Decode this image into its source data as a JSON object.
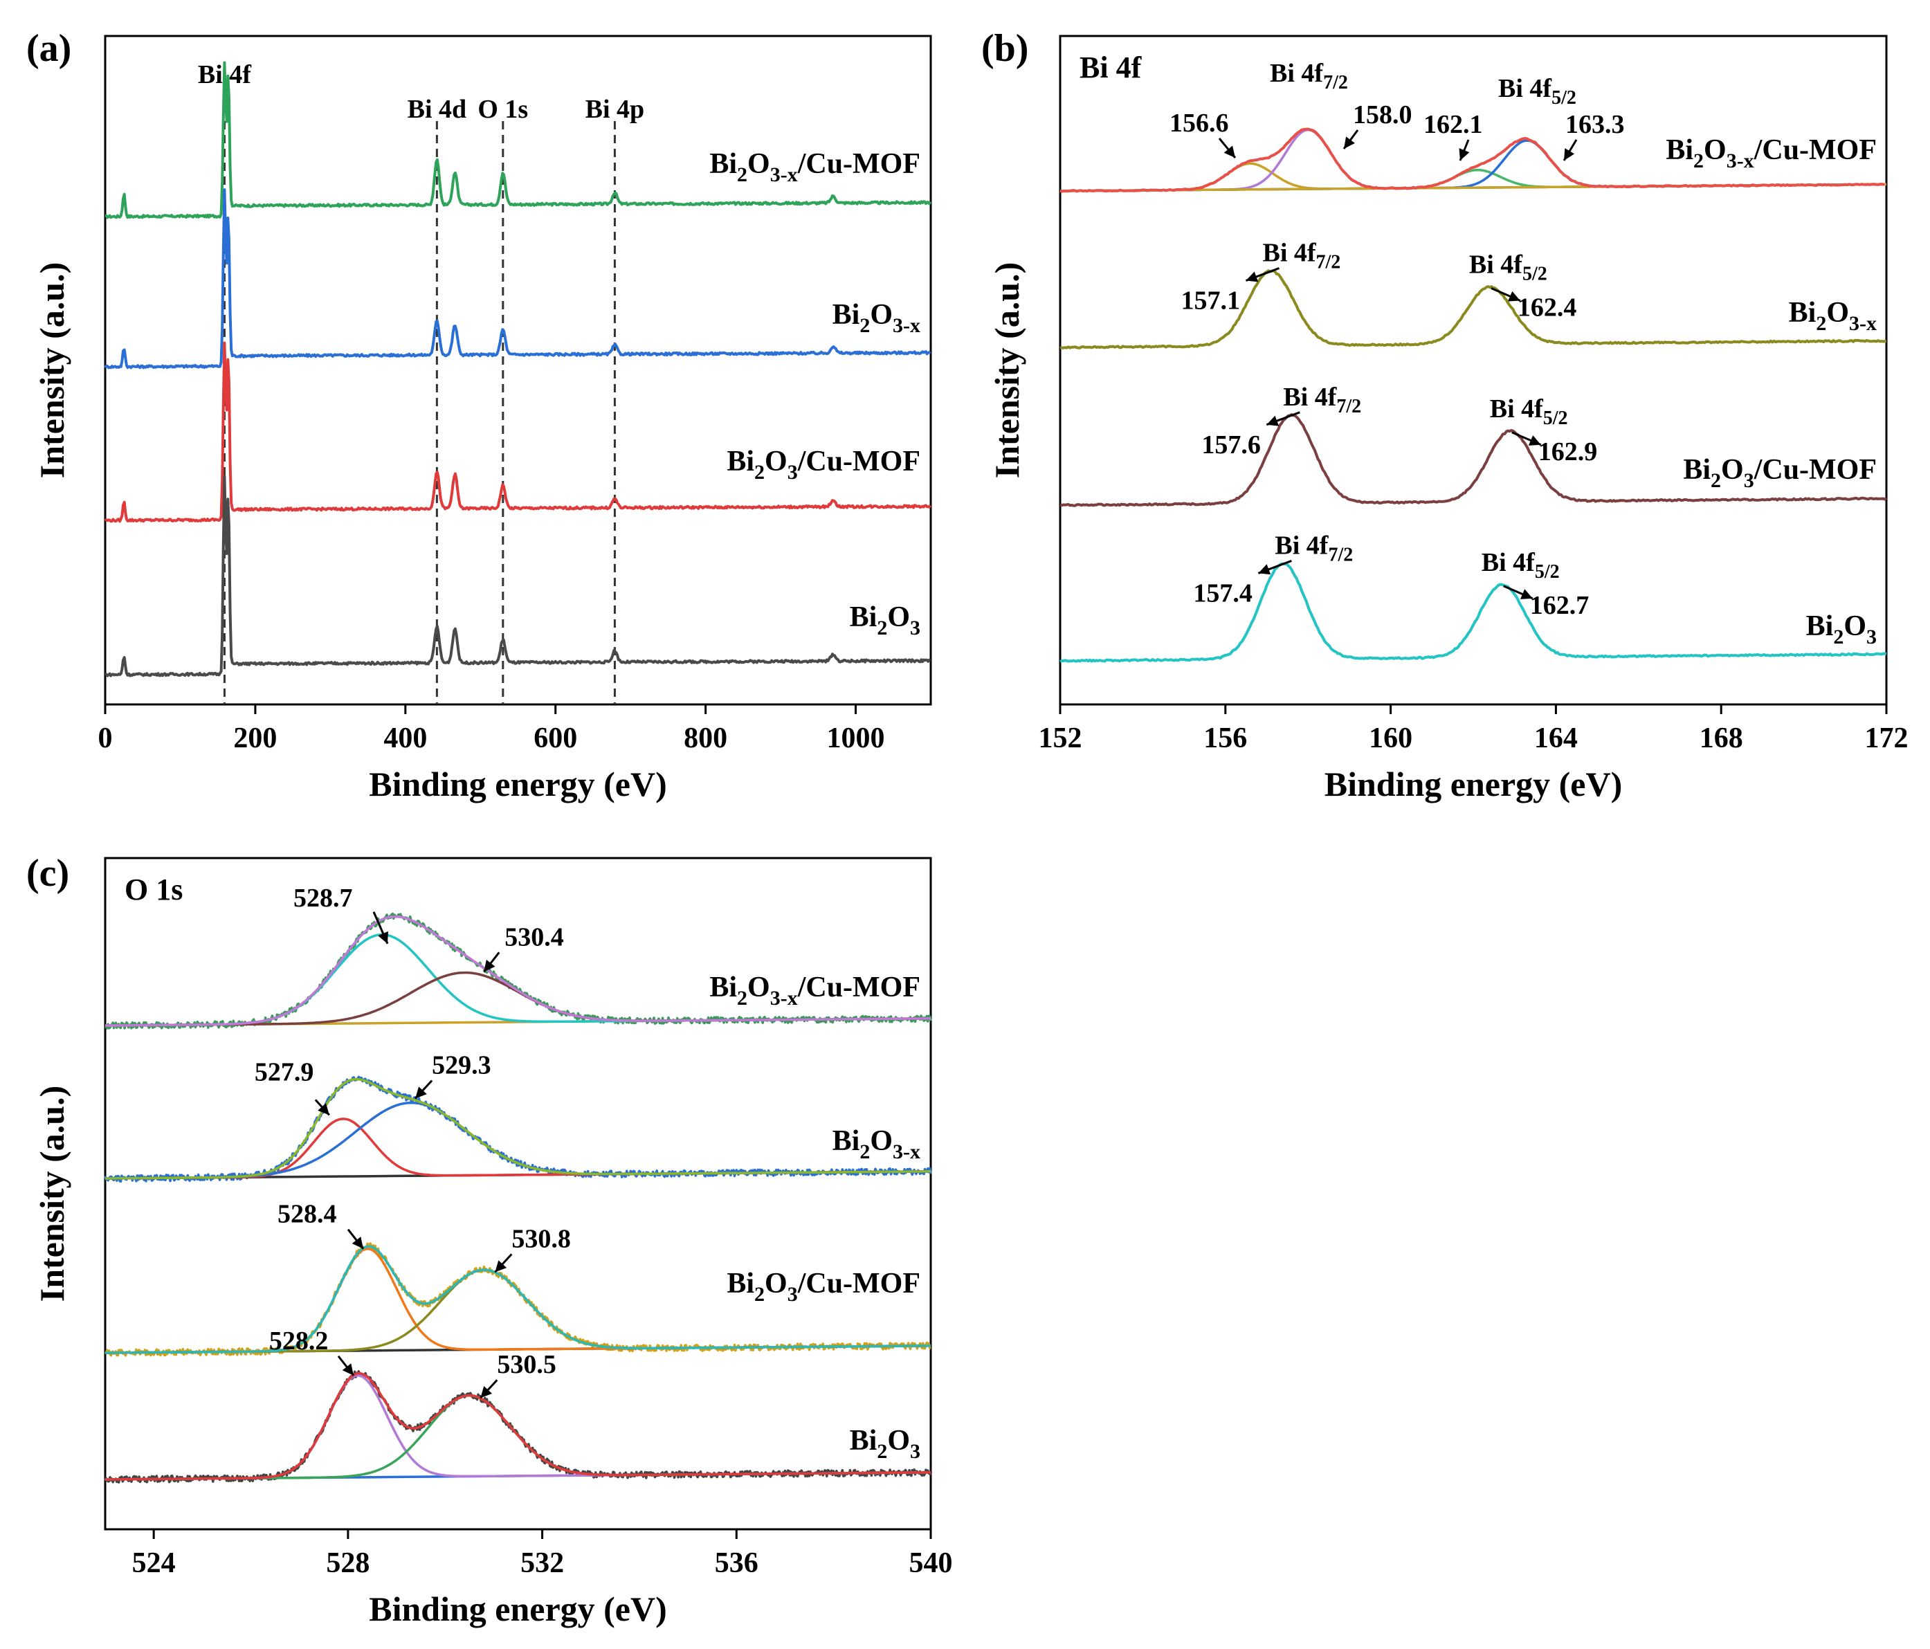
{
  "chart_data": [
    {
      "panel": "(a)",
      "type": "line",
      "xlabel": "Binding energy (eV)",
      "ylabel": "Intensity (a.u.)",
      "xlim": [
        0,
        1100
      ],
      "xticks": [
        0,
        200,
        400,
        600,
        800,
        1000
      ],
      "reference_lines": [
        {
          "x": 159,
          "label": "Bi 4f"
        },
        {
          "x": 442,
          "label": "Bi 4d"
        },
        {
          "x": 530,
          "label": "O 1s"
        },
        {
          "x": 679,
          "label": "Bi 4p"
        }
      ],
      "peak_labels": [
        {
          "label": "Bi 4f",
          "x": 159
        },
        {
          "label": "Bi 4d",
          "x": 442
        },
        {
          "label": "O 1s",
          "x": 530
        },
        {
          "label": "Bi 4p",
          "x": 679
        }
      ],
      "series": [
        {
          "name": "Bi2O3-x/Cu-MOF",
          "label_main": "Bi",
          "label_sub1": "2",
          "label_mid": "O",
          "label_sub2": "3-x",
          "label_tail": "/Cu-MOF",
          "color": "#2ea35a",
          "offset": 3,
          "peaks": [
            {
              "x": 25,
              "h": 0.1
            },
            {
              "x": 159,
              "h": 0.62
            },
            {
              "x": 164,
              "h": 0.58
            },
            {
              "x": 442,
              "h": 0.2
            },
            {
              "x": 466,
              "h": 0.14
            },
            {
              "x": 530,
              "h": 0.14
            },
            {
              "x": 679,
              "h": 0.05
            },
            {
              "x": 970,
              "h": 0.03
            }
          ]
        },
        {
          "name": "Bi2O3-x",
          "label_main": "Bi",
          "label_sub1": "2",
          "label_mid": "O",
          "label_sub2": "3-x",
          "label_tail": "",
          "color": "#2a6fd6",
          "offset": 2,
          "peaks": [
            {
              "x": 25,
              "h": 0.08
            },
            {
              "x": 159,
              "h": 0.72
            },
            {
              "x": 164,
              "h": 0.62
            },
            {
              "x": 442,
              "h": 0.15
            },
            {
              "x": 466,
              "h": 0.13
            },
            {
              "x": 530,
              "h": 0.11
            },
            {
              "x": 679,
              "h": 0.04
            },
            {
              "x": 970,
              "h": 0.03
            }
          ]
        },
        {
          "name": "Bi2O3/Cu-MOF",
          "label_main": "Bi",
          "label_sub1": "2",
          "label_mid": "O",
          "label_sub2": "3",
          "label_tail": "/Cu-MOF",
          "color": "#e03a3a",
          "offset": 1,
          "peaks": [
            {
              "x": 25,
              "h": 0.08
            },
            {
              "x": 159,
              "h": 0.72
            },
            {
              "x": 164,
              "h": 0.68
            },
            {
              "x": 442,
              "h": 0.16
            },
            {
              "x": 466,
              "h": 0.15
            },
            {
              "x": 530,
              "h": 0.1
            },
            {
              "x": 679,
              "h": 0.04
            },
            {
              "x": 970,
              "h": 0.03
            }
          ]
        },
        {
          "name": "Bi2O3",
          "label_main": "Bi",
          "label_sub1": "2",
          "label_mid": "O",
          "label_sub2": "3",
          "label_tail": "",
          "color": "#4a4a4a",
          "offset": 0,
          "peaks": [
            {
              "x": 25,
              "h": 0.08
            },
            {
              "x": 159,
              "h": 0.82
            },
            {
              "x": 164,
              "h": 0.74
            },
            {
              "x": 442,
              "h": 0.16
            },
            {
              "x": 466,
              "h": 0.15
            },
            {
              "x": 530,
              "h": 0.1
            },
            {
              "x": 679,
              "h": 0.05
            },
            {
              "x": 970,
              "h": 0.03
            }
          ]
        }
      ]
    },
    {
      "panel": "(b)",
      "type": "line",
      "corner_label": "Bi 4f",
      "xlabel": "Binding energy (eV)",
      "ylabel": "Intensity (a.u.)",
      "xlim": [
        152,
        172
      ],
      "xticks": [
        152,
        156,
        160,
        164,
        168,
        172
      ],
      "series": [
        {
          "name": "Bi2O3-x/Cu-MOF",
          "label_main": "Bi",
          "label_sub1": "2",
          "label_mid": "O",
          "label_sub2": "3-x",
          "label_tail": "/Cu-MOF",
          "offset": 3,
          "envelope_color": "#e8504a",
          "baseline_color": "#c9a227",
          "components": [
            {
              "center": 156.6,
              "h": 0.25,
              "w": 0.55,
              "color": "#c9a227"
            },
            {
              "center": 158.0,
              "h": 0.57,
              "w": 0.55,
              "color": "#b07ad6"
            },
            {
              "center": 162.1,
              "h": 0.17,
              "w": 0.55,
              "color": "#46b86a"
            },
            {
              "center": 163.3,
              "h": 0.45,
              "w": 0.55,
              "color": "#2a6fd6"
            }
          ],
          "peak_values": [
            "156.6",
            "158.0",
            "162.1",
            "163.3"
          ],
          "doublet_labels": [
            {
              "base": "Bi 4f",
              "sub": "7/2"
            },
            {
              "base": "Bi 4f",
              "sub": "5/2"
            }
          ]
        },
        {
          "name": "Bi2O3-x",
          "label_main": "Bi",
          "label_sub1": "2",
          "label_mid": "O",
          "label_sub2": "3-x",
          "label_tail": "",
          "offset": 2,
          "color": "#8a8a1e",
          "components": [
            {
              "center": 157.1,
              "h": 0.72,
              "w": 0.55
            },
            {
              "center": 162.4,
              "h": 0.55,
              "w": 0.55
            }
          ],
          "peak_values": [
            "157.1",
            "162.4"
          ],
          "doublet_labels": [
            {
              "base": "Bi 4f",
              "sub": "7/2"
            },
            {
              "base": "Bi 4f",
              "sub": "5/2"
            }
          ]
        },
        {
          "name": "Bi2O3/Cu-MOF",
          "label_main": "Bi",
          "label_sub1": "2",
          "label_mid": "O",
          "label_sub2": "3",
          "label_tail": "/Cu-MOF",
          "offset": 1,
          "color": "#7b3f3f",
          "components": [
            {
              "center": 157.6,
              "h": 0.85,
              "w": 0.55
            },
            {
              "center": 162.9,
              "h": 0.68,
              "w": 0.55
            }
          ],
          "peak_values": [
            "157.6",
            "162.9"
          ],
          "doublet_labels": [
            {
              "base": "Bi 4f",
              "sub": "7/2"
            },
            {
              "base": "Bi 4f",
              "sub": "5/2"
            }
          ]
        },
        {
          "name": "Bi2O3",
          "label_main": "Bi",
          "label_sub1": "2",
          "label_mid": "O",
          "label_sub2": "3",
          "label_tail": "",
          "offset": 0,
          "color": "#22c4c4",
          "components": [
            {
              "center": 157.4,
              "h": 0.92,
              "w": 0.55
            },
            {
              "center": 162.7,
              "h": 0.7,
              "w": 0.55
            }
          ],
          "peak_values": [
            "157.4",
            "162.7"
          ],
          "doublet_labels": [
            {
              "base": "Bi 4f",
              "sub": "7/2"
            },
            {
              "base": "Bi 4f",
              "sub": "5/2"
            }
          ]
        }
      ]
    },
    {
      "panel": "(c)",
      "type": "line",
      "corner_label": "O 1s",
      "xlabel": "Binding energy (eV)",
      "ylabel": "Intensity (a.u.)",
      "xlim": [
        523,
        540
      ],
      "xticks": [
        524,
        528,
        532,
        536,
        540
      ],
      "series": [
        {
          "name": "Bi2O3-x/Cu-MOF",
          "label_main": "Bi",
          "label_sub1": "2",
          "label_mid": "O",
          "label_sub2": "3-x",
          "label_tail": "/Cu-MOF",
          "offset": 3,
          "raw_color": "#3a9a5a",
          "envelope_color": "#c07ad6",
          "baseline_color": "#c9a227",
          "components": [
            {
              "center": 528.7,
              "h": 0.8,
              "w": 0.95,
              "color": "#22c4c4"
            },
            {
              "center": 530.4,
              "h": 0.45,
              "w": 1.1,
              "color": "#7b3f3f"
            }
          ],
          "peak_values": [
            "528.7",
            "530.4"
          ]
        },
        {
          "name": "Bi2O3-x",
          "label_main": "Bi",
          "label_sub1": "2",
          "label_mid": "O",
          "label_sub2": "3-x",
          "label_tail": "",
          "offset": 2,
          "raw_color": "#2a6fd6",
          "envelope_color": "#8ab82a",
          "baseline_color": "#333333",
          "components": [
            {
              "center": 527.9,
              "h": 0.52,
              "w": 0.6,
              "color": "#e03a3a"
            },
            {
              "center": 529.3,
              "h": 0.66,
              "w": 1.15,
              "color": "#2a6fd6"
            }
          ],
          "peak_values": [
            "527.9",
            "529.3"
          ]
        },
        {
          "name": "Bi2O3/Cu-MOF",
          "label_main": "Bi",
          "label_sub1": "2",
          "label_mid": "O",
          "label_sub2": "3",
          "label_tail": "/Cu-MOF",
          "offset": 1,
          "raw_color": "#d4a017",
          "envelope_color": "#2ab8b8",
          "baseline_color": "#333333",
          "components": [
            {
              "center": 528.4,
              "h": 0.92,
              "w": 0.6,
              "color": "#f07a1a"
            },
            {
              "center": 530.8,
              "h": 0.72,
              "w": 0.9,
              "color": "#8a8a1e"
            }
          ],
          "peak_values": [
            "528.4",
            "530.8"
          ]
        },
        {
          "name": "Bi2O3",
          "label_main": "Bi",
          "label_sub1": "2",
          "label_mid": "O",
          "label_sub2": "3",
          "label_tail": "",
          "offset": 0,
          "raw_color": "#444444",
          "envelope_color": "#e03a3a",
          "baseline_color": "#2a6fd6",
          "components": [
            {
              "center": 528.2,
              "h": 0.92,
              "w": 0.6,
              "color": "#b07ad6"
            },
            {
              "center": 530.5,
              "h": 0.73,
              "w": 0.85,
              "color": "#3aa55a"
            }
          ],
          "peak_values": [
            "528.2",
            "530.5"
          ]
        }
      ]
    }
  ],
  "labels": {
    "panel_a": "(a)",
    "panel_b": "(b)",
    "panel_c": "(c)"
  }
}
